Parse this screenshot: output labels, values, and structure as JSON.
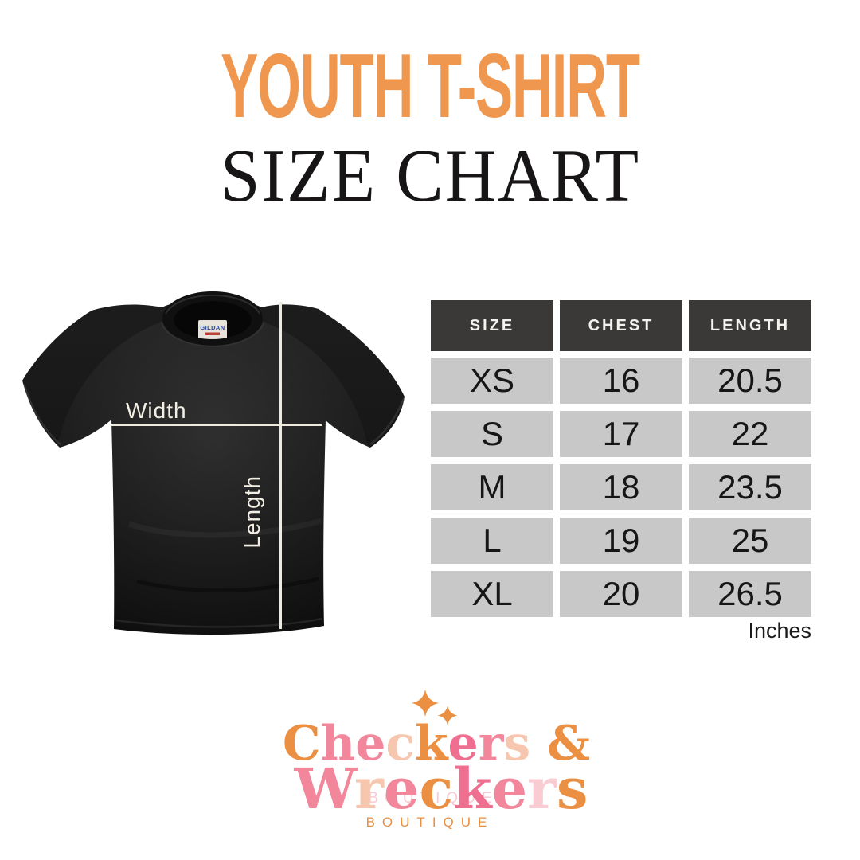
{
  "palette": {
    "title_orange": "#F0974F",
    "ink": "#171515",
    "orange": "#EB9043",
    "pink": "#F2879C",
    "rose": "#EE6F90",
    "peach": "#F6C6AF",
    "palepink": "#F9CBD2",
    "header_bg": "#3A3938",
    "row_bg": "#C9C8C8",
    "line_cream": "#EFEADE"
  },
  "title": {
    "line1": "YOUTH T-SHIRT",
    "line2": "SIZE CHART"
  },
  "diagram": {
    "width_label": "Width",
    "length_label": "Length",
    "collar_brand": "GILDAN"
  },
  "table": {
    "headers": [
      "SIZE",
      "CHEST",
      "LENGTH"
    ],
    "rows": [
      [
        "XS",
        "16",
        "20.5"
      ],
      [
        "S",
        "17",
        "22"
      ],
      [
        "M",
        "18",
        "23.5"
      ],
      [
        "L",
        "19",
        "25"
      ],
      [
        "XL",
        "20",
        "26.5"
      ]
    ],
    "unit_note": "Inches"
  },
  "logo": {
    "line1": [
      [
        "C",
        "orange"
      ],
      [
        "h",
        "pink"
      ],
      [
        "e",
        "pink"
      ],
      [
        "c",
        "peach"
      ],
      [
        "k",
        "orange"
      ],
      [
        "e",
        "rose"
      ],
      [
        "r",
        "pink"
      ],
      [
        "s",
        "peach"
      ],
      [
        " ",
        ""
      ],
      [
        "&",
        "orange"
      ]
    ],
    "line2": [
      [
        "W",
        "pink"
      ],
      [
        "r",
        "peach"
      ],
      [
        "e",
        "pink"
      ],
      [
        "c",
        "orange"
      ],
      [
        "k",
        "rose"
      ],
      [
        "e",
        "pink"
      ],
      [
        "r",
        "palepink"
      ],
      [
        "s",
        "orange"
      ]
    ],
    "boutique_overlay": "BOUTIQUE",
    "boutique_label": "BOUTIQUE"
  },
  "chart_data": {
    "type": "table",
    "title": "YOUTH T-SHIRT SIZE CHART",
    "columns": [
      "SIZE",
      "CHEST",
      "LENGTH"
    ],
    "rows": [
      [
        "XS",
        16,
        20.5
      ],
      [
        "S",
        17,
        22
      ],
      [
        "M",
        18,
        23.5
      ],
      [
        "L",
        19,
        25
      ],
      [
        "XL",
        20,
        26.5
      ]
    ],
    "units": "Inches"
  }
}
